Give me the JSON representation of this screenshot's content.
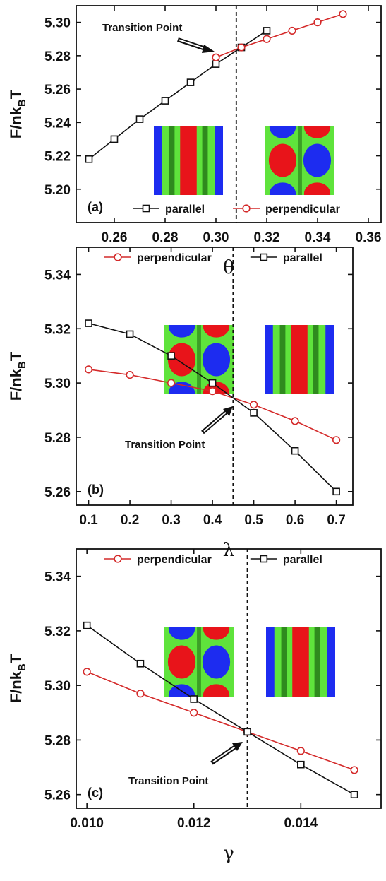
{
  "chart_data": [
    {
      "type": "line",
      "panel_label": "(a)",
      "annotation": "Transition Point",
      "xlabel": "θ",
      "ylabel": [
        "F/nk",
        "B",
        "T"
      ],
      "xlim": [
        0.245,
        0.365
      ],
      "ylim": [
        5.18,
        5.31
      ],
      "xticks": [
        0.26,
        0.28,
        {
          "value": 0.3,
          "label": "0.30"
        },
        0.32,
        0.34,
        {
          "value": 0.36,
          "label": "0.36"
        }
      ],
      "yticks": [
        {
          "value": 5.2,
          "label": "5.20"
        },
        5.22,
        5.24,
        5.26,
        5.28,
        {
          "value": 5.3,
          "label": "5.30"
        }
      ],
      "vline": 0.308,
      "legend": "lower right",
      "series": [
        {
          "name": "parallel",
          "color": "#111111",
          "marker": "square",
          "x": [
            0.25,
            0.26,
            0.27,
            0.28,
            0.29,
            0.3,
            0.31,
            0.32
          ],
          "values": [
            5.218,
            5.23,
            5.242,
            5.253,
            5.264,
            5.275,
            5.285,
            5.295
          ]
        },
        {
          "name": "perpendicular",
          "color": "#d42a2a",
          "marker": "circle",
          "x": [
            0.3,
            0.31,
            0.32,
            0.33,
            0.34,
            0.35
          ],
          "values": [
            5.279,
            5.285,
            5.29,
            5.295,
            5.3,
            5.305
          ]
        }
      ]
    },
    {
      "type": "line",
      "panel_label": "(b)",
      "annotation": "Transition Point",
      "xlabel": "λ",
      "ylabel": [
        "F/nk",
        "B",
        "T"
      ],
      "xlim": [
        0.07,
        0.74
      ],
      "ylim": [
        5.255,
        5.35
      ],
      "xticks": [
        0.1,
        0.2,
        0.3,
        0.4,
        0.5,
        0.6,
        0.7
      ],
      "yticks": [
        5.26,
        5.28,
        {
          "value": 5.3,
          "label": "5.30"
        },
        5.32,
        5.34
      ],
      "vline": 0.45,
      "legend": "upper center",
      "series": [
        {
          "name": "perpendicular",
          "color": "#d42a2a",
          "marker": "circle",
          "x": [
            0.1,
            0.2,
            0.3,
            0.4,
            0.5,
            0.6,
            0.7
          ],
          "values": [
            5.305,
            5.303,
            5.3,
            5.297,
            5.292,
            5.286,
            5.279
          ]
        },
        {
          "name": "parallel",
          "color": "#111111",
          "marker": "square",
          "x": [
            0.1,
            0.2,
            0.3,
            0.4,
            0.5,
            0.6,
            0.7
          ],
          "values": [
            5.322,
            5.318,
            5.31,
            5.3,
            5.289,
            5.275,
            5.26
          ]
        }
      ]
    },
    {
      "type": "line",
      "panel_label": "(c)",
      "annotation": "Transition Point",
      "xlabel": "γ",
      "ylabel": [
        "F/nk",
        "B",
        "T"
      ],
      "xlim": [
        0.0098,
        0.0155
      ],
      "ylim": [
        5.255,
        5.35
      ],
      "xticks": [
        {
          "value": 0.01,
          "label": "0.010"
        },
        {
          "value": 0.012,
          "label": "0.012"
        },
        {
          "value": 0.014,
          "label": "0.014"
        }
      ],
      "yticks": [
        5.26,
        5.28,
        {
          "value": 5.3,
          "label": "5.30"
        },
        5.32,
        5.34
      ],
      "vline": 0.013,
      "legend": "upper center",
      "series": [
        {
          "name": "perpendicular",
          "color": "#d42a2a",
          "marker": "circle",
          "x": [
            0.01,
            0.011,
            0.012,
            0.013,
            0.014,
            0.015
          ],
          "values": [
            5.305,
            5.297,
            5.29,
            5.283,
            5.276,
            5.269
          ]
        },
        {
          "name": "parallel",
          "color": "#111111",
          "marker": "square",
          "x": [
            0.01,
            0.011,
            0.012,
            0.013,
            0.014,
            0.015
          ],
          "values": [
            5.322,
            5.308,
            5.295,
            5.283,
            5.271,
            5.26
          ]
        }
      ]
    }
  ]
}
